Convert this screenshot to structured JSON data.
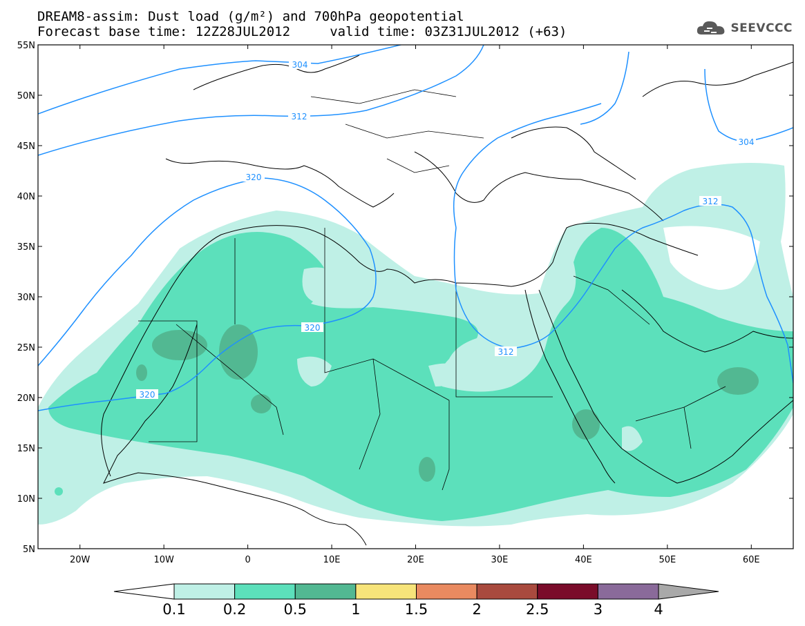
{
  "header": {
    "title_line1": "DREAM8-assim: Dust load (g/m²) and 700hPa geopotential",
    "title_line2": "Forecast base time: 12Z28JUL2012     valid time: 03Z31JUL2012 (+63)",
    "logo_text": "SEEVCCC",
    "logo_icon": "cloud-icon"
  },
  "map": {
    "lon_range": [
      -25,
      65
    ],
    "lat_range": [
      5,
      55
    ],
    "lat_ticks": [
      "55N",
      "50N",
      "45N",
      "40N",
      "35N",
      "30N",
      "25N",
      "20N",
      "15N",
      "10N",
      "5N"
    ],
    "lon_ticks": [
      "20W",
      "10W",
      "0",
      "10E",
      "20E",
      "30E",
      "40E",
      "50E",
      "60E"
    ],
    "contour_labels": [
      "304",
      "312",
      "320",
      "320",
      "320",
      "312",
      "312",
      "304"
    ],
    "colors": {
      "band_01": "#bff0e6",
      "band_02": "#5ce0bb",
      "band_05": "#52b892",
      "land_line": "#000000",
      "contour": "#1e90ff"
    }
  },
  "colorbar": {
    "ticks": [
      "0.1",
      "0.2",
      "0.5",
      "1",
      "1.5",
      "2",
      "2.5",
      "3",
      "4"
    ],
    "colors": [
      "#ffffff",
      "#bff0e6",
      "#5ce0bb",
      "#52b892",
      "#f7e47a",
      "#e98a60",
      "#a94a3e",
      "#7a0c2a",
      "#8a6a9a",
      "#a9a9a9"
    ]
  }
}
